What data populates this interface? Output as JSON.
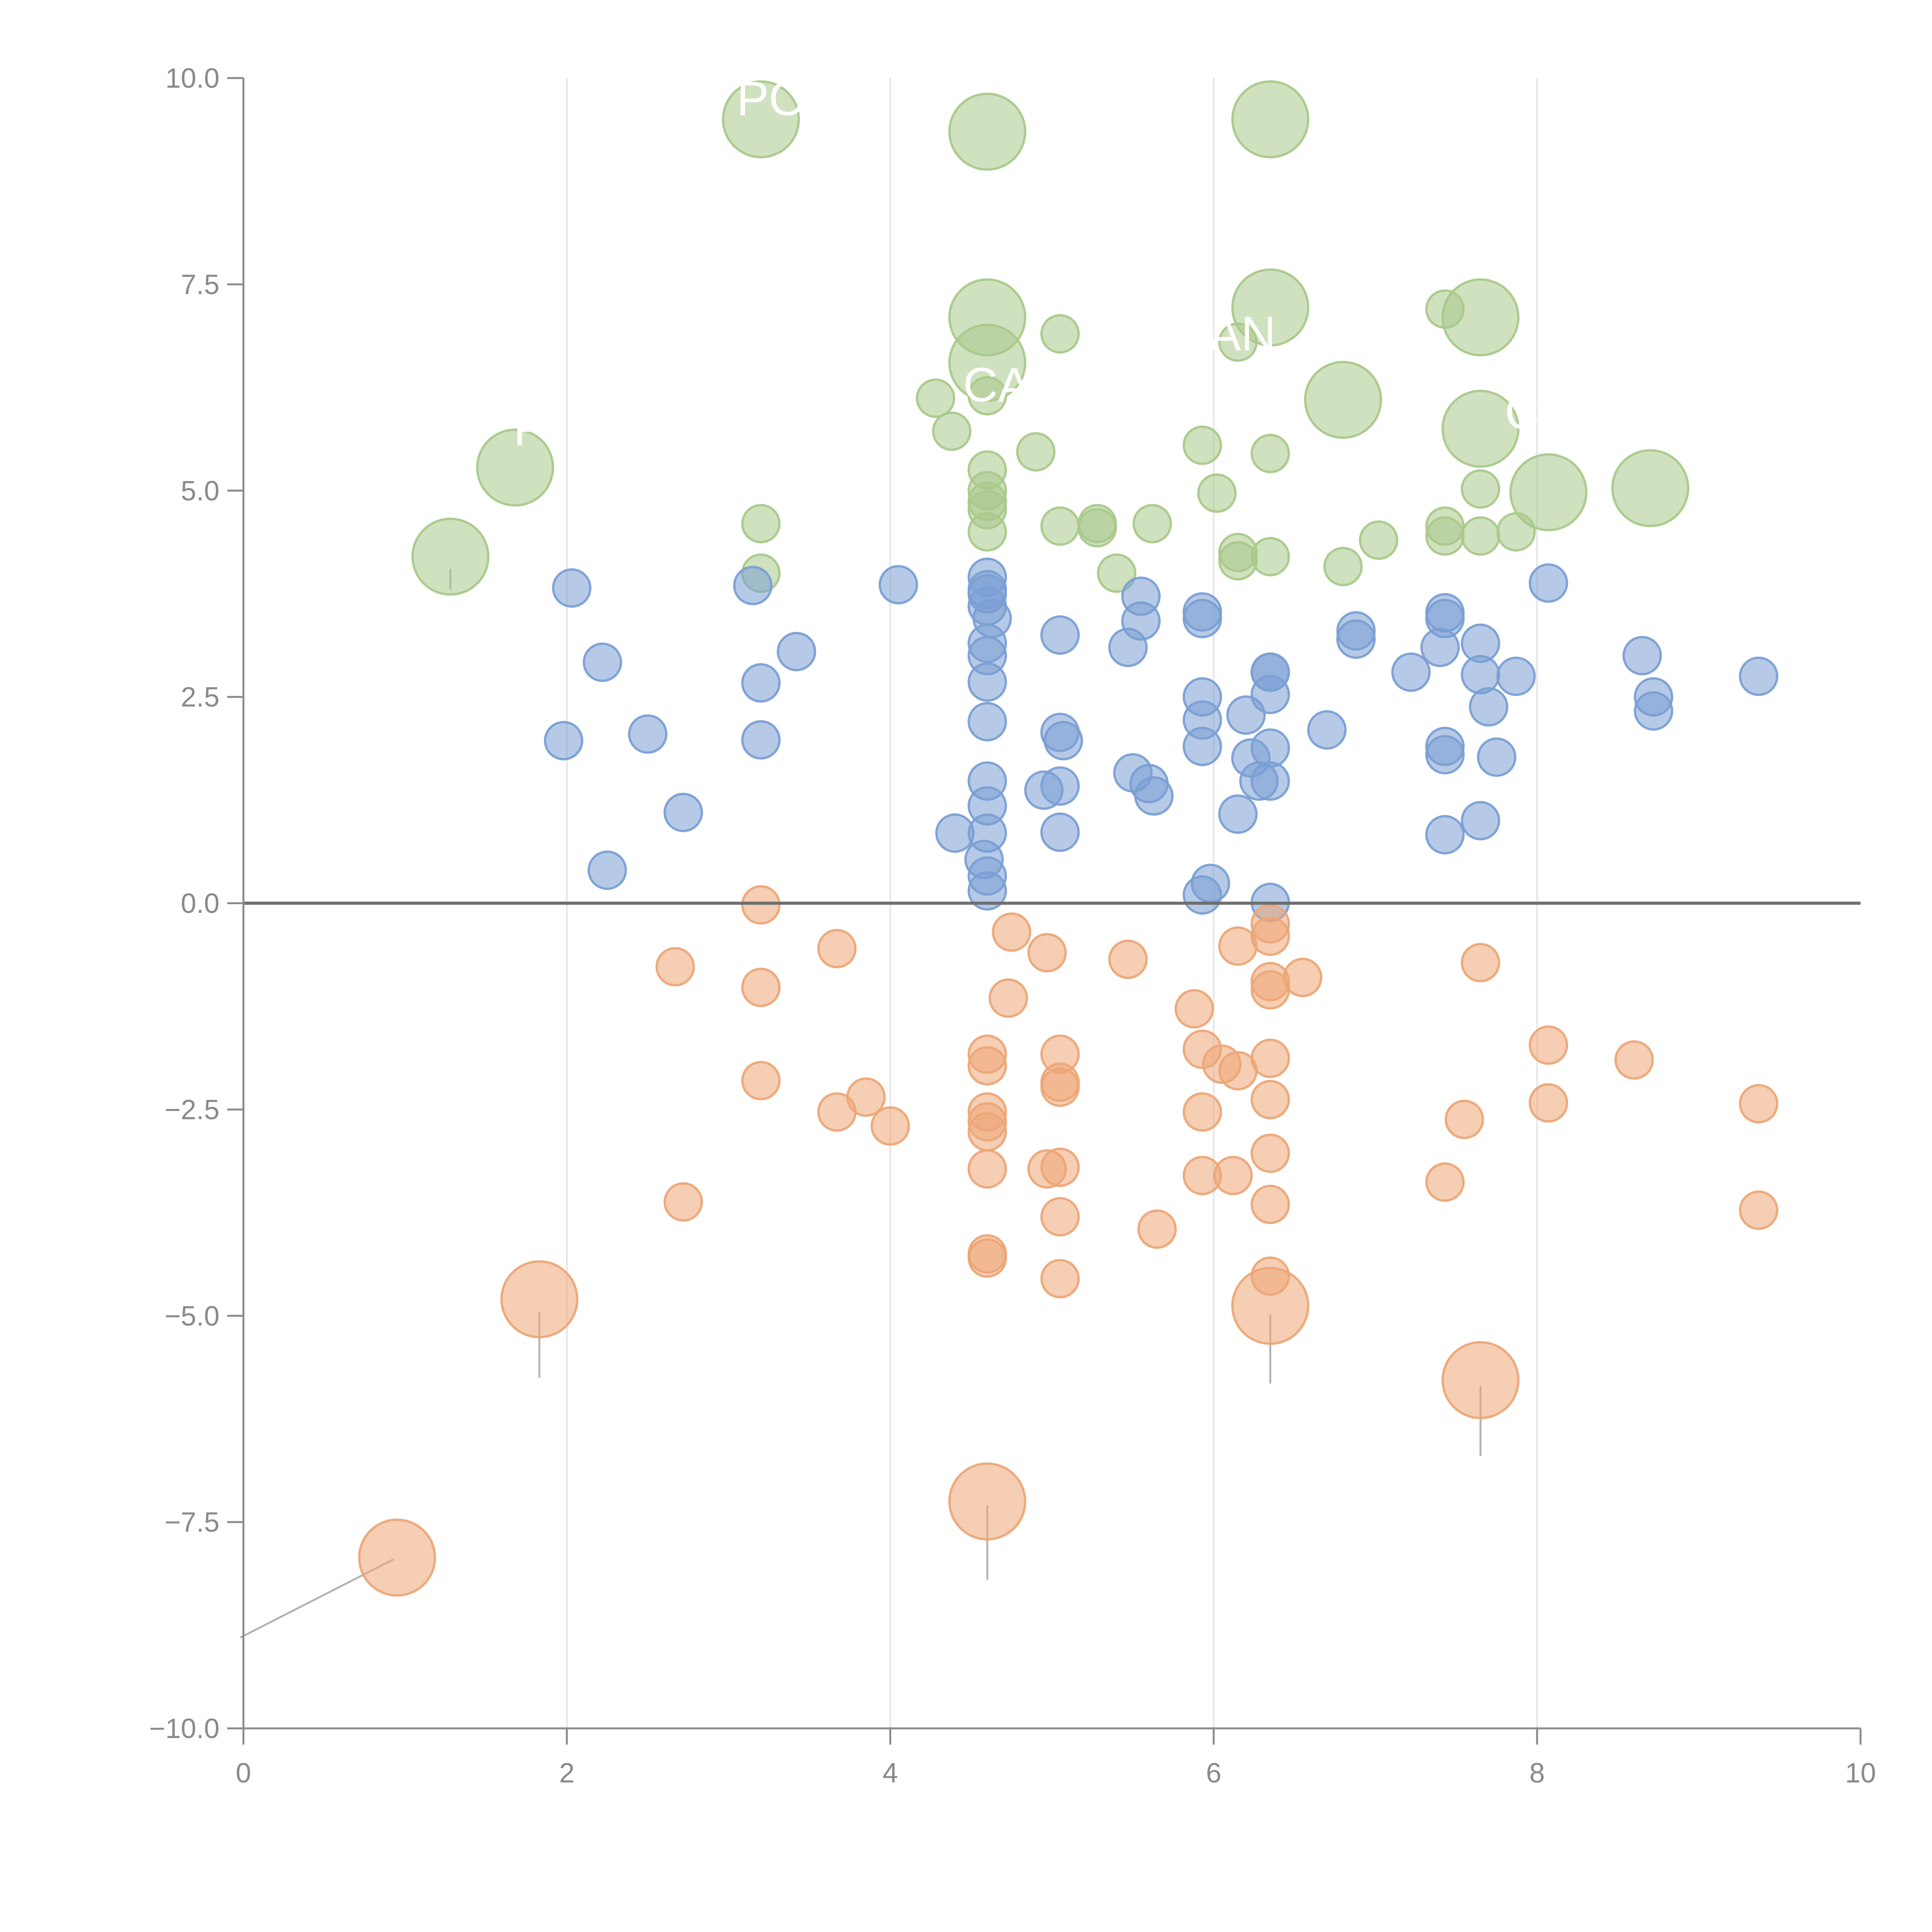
{
  "chart_data": {
    "type": "scatter",
    "variant": "bubble",
    "title": "",
    "xlabel": "",
    "ylabel": "",
    "xlim": [
      0,
      10
    ],
    "ylim": [
      -10,
      10
    ],
    "x_ticks": [
      0,
      2,
      4,
      6,
      8,
      10
    ],
    "x_tick_labels": [
      "0",
      "2",
      "4",
      "6",
      "8",
      "10"
    ],
    "y_ticks": [
      10,
      7.5,
      5,
      2.5,
      0,
      -2.5,
      -5,
      -7.5,
      -10
    ],
    "y_tick_labels": [
      "10.0",
      "7.5",
      "5.0",
      "2.5",
      "0.0",
      "−2.5",
      "−5.0",
      "−7.5",
      "−10.0"
    ],
    "grid": "vertical",
    "zero_line": 0,
    "legend": "none",
    "colors": {
      "green": "#a9c98a",
      "blue": "#7a9fd4",
      "orange": "#eca677",
      "axis": "#8a8a8a",
      "grid": "#dcdcdc",
      "zero": "#6e6e6e",
      "leader": "#b3b3b3"
    },
    "series": [
      {
        "name": "green",
        "color": "#a9c98a",
        "points": [
          [
            3.2,
            9.5,
            2
          ],
          [
            4.6,
            9.35,
            2
          ],
          [
            6.35,
            9.5,
            2
          ],
          [
            4.6,
            7.1,
            2
          ],
          [
            6.35,
            7.22,
            2
          ],
          [
            7.65,
            7.1,
            2
          ],
          [
            4.6,
            6.55,
            2
          ],
          [
            6.8,
            6.1,
            2
          ],
          [
            7.65,
            5.75,
            2
          ],
          [
            1.68,
            5.28,
            2
          ],
          [
            8.07,
            4.98,
            2
          ],
          [
            8.7,
            5.03,
            2
          ],
          [
            1.28,
            4.2,
            2
          ],
          [
            5.05,
            6.9,
            1
          ],
          [
            6.15,
            6.8,
            1
          ],
          [
            7.43,
            7.2,
            1
          ],
          [
            4.28,
            6.12,
            1
          ],
          [
            4.6,
            6.15,
            1
          ],
          [
            4.38,
            5.72,
            1
          ],
          [
            4.9,
            5.47,
            1
          ],
          [
            5.93,
            5.55,
            1
          ],
          [
            6.35,
            5.45,
            1
          ],
          [
            4.6,
            5.25,
            1
          ],
          [
            4.6,
            5.0,
            1
          ],
          [
            4.6,
            4.87,
            1
          ],
          [
            4.6,
            4.77,
            1
          ],
          [
            4.6,
            4.5,
            1
          ],
          [
            3.2,
            4.6,
            1
          ],
          [
            3.2,
            4.0,
            1
          ],
          [
            5.05,
            4.57,
            1
          ],
          [
            5.28,
            4.6,
            1
          ],
          [
            5.28,
            4.55,
            1
          ],
          [
            5.62,
            4.6,
            1
          ],
          [
            6.02,
            4.97,
            1
          ],
          [
            7.65,
            5.02,
            1
          ],
          [
            6.15,
            4.25,
            1
          ],
          [
            6.15,
            4.15,
            1
          ],
          [
            6.35,
            4.2,
            1
          ],
          [
            5.4,
            4.0,
            1
          ],
          [
            6.8,
            4.08,
            1
          ],
          [
            7.02,
            4.4,
            1
          ],
          [
            7.43,
            4.57,
            1
          ],
          [
            7.43,
            4.45,
            1
          ],
          [
            7.65,
            4.45,
            1
          ],
          [
            7.87,
            4.5,
            1
          ]
        ]
      },
      {
        "name": "blue",
        "color": "#7a9fd4",
        "points": [
          [
            2.03,
            3.82,
            1
          ],
          [
            3.15,
            3.85,
            1
          ],
          [
            4.05,
            3.86,
            1
          ],
          [
            4.6,
            3.95,
            1
          ],
          [
            4.6,
            3.8,
            1
          ],
          [
            4.6,
            3.75,
            1
          ],
          [
            4.6,
            3.6,
            1
          ],
          [
            4.63,
            3.45,
            1
          ],
          [
            5.05,
            3.25,
            1
          ],
          [
            5.47,
            3.1,
            1
          ],
          [
            5.55,
            3.72,
            1
          ],
          [
            5.55,
            3.42,
            1
          ],
          [
            5.93,
            3.53,
            1
          ],
          [
            5.93,
            3.45,
            1
          ],
          [
            6.35,
            2.8,
            1
          ],
          [
            6.35,
            2.8,
            1
          ],
          [
            6.35,
            2.53,
            1
          ],
          [
            6.88,
            3.3,
            1
          ],
          [
            6.88,
            3.2,
            1
          ],
          [
            7.43,
            3.52,
            1
          ],
          [
            7.43,
            3.45,
            1
          ],
          [
            7.4,
            3.1,
            1
          ],
          [
            7.65,
            3.15,
            1
          ],
          [
            7.22,
            2.8,
            1
          ],
          [
            7.65,
            2.77,
            1
          ],
          [
            7.87,
            2.75,
            1
          ],
          [
            8.07,
            3.88,
            1
          ],
          [
            8.65,
            3.0,
            1
          ],
          [
            8.72,
            2.5,
            1
          ],
          [
            8.72,
            2.33,
            1
          ],
          [
            9.37,
            2.75,
            1
          ],
          [
            7.7,
            2.38,
            1
          ],
          [
            2.22,
            2.92,
            1
          ],
          [
            3.2,
            2.67,
            1
          ],
          [
            3.42,
            3.05,
            1
          ],
          [
            4.6,
            3.15,
            1
          ],
          [
            4.6,
            3.0,
            1
          ],
          [
            4.6,
            2.68,
            1
          ],
          [
            4.6,
            2.2,
            1
          ],
          [
            5.05,
            2.07,
            1
          ],
          [
            5.07,
            1.97,
            1
          ],
          [
            5.93,
            2.5,
            1
          ],
          [
            5.93,
            2.22,
            1
          ],
          [
            6.2,
            2.28,
            1
          ],
          [
            6.7,
            2.1,
            1
          ],
          [
            2.5,
            2.05,
            1
          ],
          [
            1.98,
            1.97,
            1
          ],
          [
            3.2,
            1.98,
            1
          ],
          [
            5.93,
            1.9,
            1
          ],
          [
            6.35,
            1.88,
            1
          ],
          [
            6.23,
            1.76,
            1
          ],
          [
            7.43,
            1.9,
            1
          ],
          [
            7.43,
            1.8,
            1
          ],
          [
            7.75,
            1.77,
            1
          ],
          [
            2.72,
            1.1,
            1
          ],
          [
            4.6,
            1.48,
            1
          ],
          [
            4.6,
            1.18,
            1
          ],
          [
            4.95,
            1.37,
            1
          ],
          [
            5.05,
            1.42,
            1
          ],
          [
            5.5,
            1.58,
            1
          ],
          [
            5.6,
            1.45,
            1
          ],
          [
            5.63,
            1.3,
            1
          ],
          [
            6.28,
            1.48,
            1
          ],
          [
            6.35,
            1.48,
            1
          ],
          [
            6.15,
            1.08,
            1
          ],
          [
            7.65,
            1.0,
            1
          ],
          [
            7.43,
            0.83,
            1
          ],
          [
            4.4,
            0.85,
            1
          ],
          [
            4.6,
            0.85,
            1
          ],
          [
            5.05,
            0.86,
            1
          ],
          [
            4.58,
            0.53,
            1
          ],
          [
            4.6,
            0.33,
            1
          ],
          [
            4.6,
            0.15,
            1
          ],
          [
            2.25,
            0.4,
            1
          ],
          [
            5.98,
            0.24,
            1
          ],
          [
            5.93,
            0.1,
            1
          ],
          [
            6.35,
            0.01,
            1
          ]
        ]
      },
      {
        "name": "orange",
        "color": "#eca677",
        "points": [
          [
            1.83,
            -4.8,
            2
          ],
          [
            6.35,
            -4.88,
            2
          ],
          [
            7.65,
            -5.78,
            2
          ],
          [
            0.95,
            -7.93,
            2
          ],
          [
            4.6,
            -7.25,
            2
          ],
          [
            3.2,
            -0.02,
            1
          ],
          [
            6.35,
            -0.25,
            1
          ],
          [
            6.35,
            -0.4,
            1
          ],
          [
            4.75,
            -0.35,
            1
          ],
          [
            3.67,
            -0.55,
            1
          ],
          [
            4.97,
            -0.6,
            1
          ],
          [
            5.47,
            -0.68,
            1
          ],
          [
            6.15,
            -0.52,
            1
          ],
          [
            2.67,
            -0.77,
            1
          ],
          [
            7.65,
            -0.72,
            1
          ],
          [
            3.2,
            -1.02,
            1
          ],
          [
            4.73,
            -1.15,
            1
          ],
          [
            6.35,
            -0.95,
            1
          ],
          [
            6.35,
            -1.05,
            1
          ],
          [
            6.55,
            -0.9,
            1
          ],
          [
            5.88,
            -1.28,
            1
          ],
          [
            8.07,
            -1.72,
            1
          ],
          [
            8.6,
            -1.9,
            1
          ],
          [
            4.6,
            -1.83,
            1
          ],
          [
            4.6,
            -1.97,
            1
          ],
          [
            5.05,
            -1.83,
            1
          ],
          [
            5.05,
            -2.17,
            1
          ],
          [
            5.05,
            -2.23,
            1
          ],
          [
            5.93,
            -1.77,
            1
          ],
          [
            6.05,
            -1.95,
            1
          ],
          [
            6.15,
            -2.03,
            1
          ],
          [
            6.35,
            -1.88,
            1
          ],
          [
            3.2,
            -2.15,
            1
          ],
          [
            3.85,
            -2.35,
            1
          ],
          [
            3.67,
            -2.53,
            1
          ],
          [
            4.0,
            -2.7,
            1
          ],
          [
            4.6,
            -2.53,
            1
          ],
          [
            4.6,
            -2.65,
            1
          ],
          [
            4.6,
            -2.77,
            1
          ],
          [
            6.35,
            -2.38,
            1
          ],
          [
            5.93,
            -2.53,
            1
          ],
          [
            8.07,
            -2.42,
            1
          ],
          [
            7.55,
            -2.62,
            1
          ],
          [
            9.37,
            -2.43,
            1
          ],
          [
            6.35,
            -3.03,
            1
          ],
          [
            4.6,
            -3.22,
            1
          ],
          [
            4.97,
            -3.22,
            1
          ],
          [
            5.05,
            -3.2,
            1
          ],
          [
            5.93,
            -3.3,
            1
          ],
          [
            6.12,
            -3.3,
            1
          ],
          [
            7.43,
            -3.38,
            1
          ],
          [
            2.72,
            -3.62,
            1
          ],
          [
            6.35,
            -3.65,
            1
          ],
          [
            5.05,
            -3.8,
            1
          ],
          [
            5.65,
            -3.95,
            1
          ],
          [
            9.37,
            -3.72,
            1
          ],
          [
            4.6,
            -4.25,
            1
          ],
          [
            4.6,
            -4.3,
            1
          ],
          [
            5.05,
            -4.55,
            1
          ],
          [
            6.35,
            -4.52,
            1
          ]
        ]
      }
    ],
    "annotations": [
      {
        "text": "PO",
        "x": 3.05,
        "y": 9.55
      },
      {
        "text": "CA",
        "x": 4.45,
        "y": 6.08
      },
      {
        "text": "AN",
        "x": 5.97,
        "y": 6.7
      },
      {
        "text": "C",
        "x": 7.8,
        "y": 5.75
      },
      {
        "text": "F",
        "x": 1.67,
        "y": 5.55
      }
    ]
  }
}
